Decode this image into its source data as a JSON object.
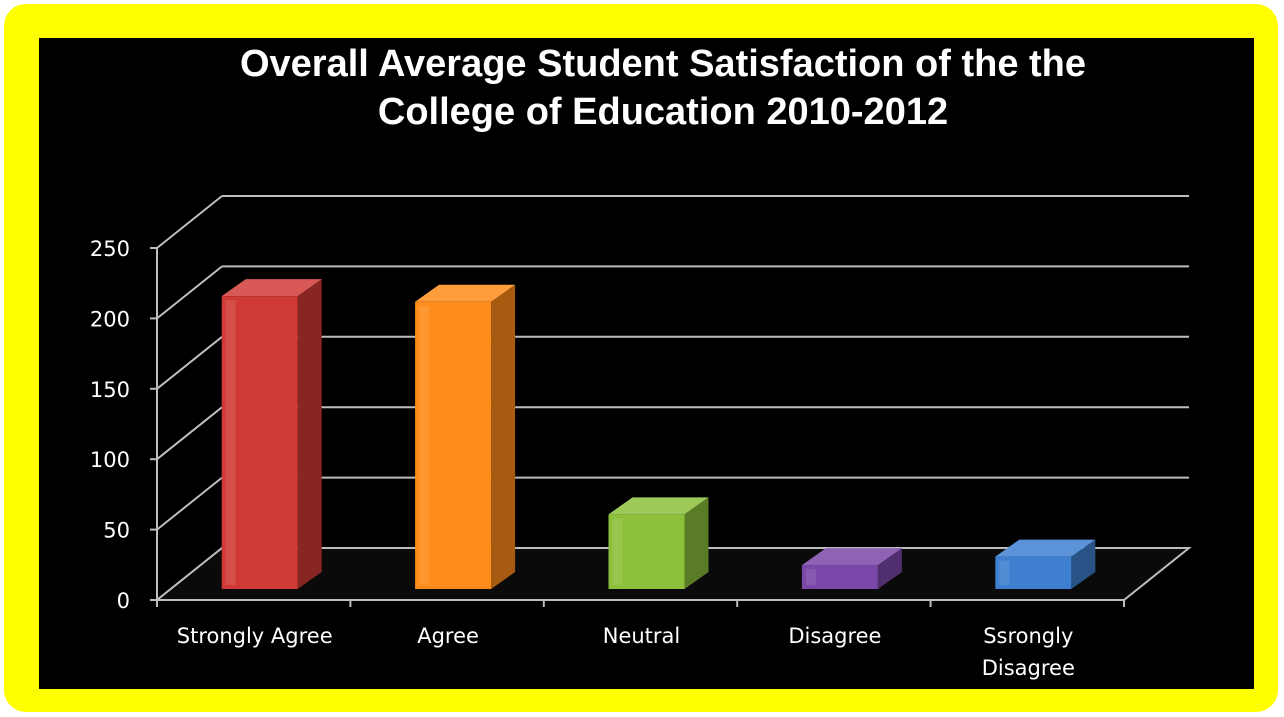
{
  "chart_data": {
    "type": "bar",
    "title_lines": [
      "Overall Average Student Satisfaction of the the",
      "College of Education 2010-2012"
    ],
    "categories": [
      "Strongly Agree",
      "Agree",
      "Neutral",
      "Disagree",
      "Ssrongly Disagree"
    ],
    "category_lines": [
      [
        "Strongly Agree"
      ],
      [
        "Agree"
      ],
      [
        "Neutral"
      ],
      [
        "Disagree"
      ],
      [
        "Ssrongly",
        "Disagree"
      ]
    ],
    "values": [
      208,
      204,
      53,
      17,
      23
    ],
    "ylim": [
      0,
      250
    ],
    "yticks": [
      "0",
      "50",
      "100",
      "150",
      "200",
      "250"
    ],
    "grid": true,
    "colors": [
      "#d03a36",
      "#ff8c1a",
      "#8cbf3a",
      "#7a48a8",
      "#3f7fd0"
    ],
    "background": "#000000",
    "frame_color": "#ffff00"
  }
}
